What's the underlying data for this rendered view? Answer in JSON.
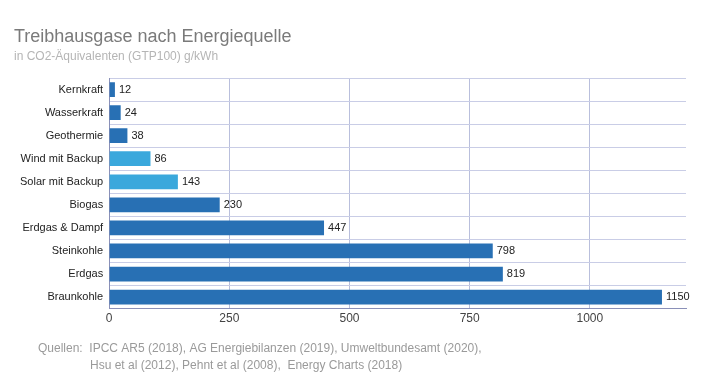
{
  "chart_data": {
    "type": "bar",
    "orientation": "horizontal",
    "title": "Treibhausgase nach Energiequelle",
    "subtitle": "in CO2-Äquivalenten (GTP100) g/kWh",
    "categories": [
      "Kernkraft",
      "Wasserkraft",
      "Geothermie",
      "Wind mit Backup",
      "Solar mit Backup",
      "Biogas",
      "Erdgas & Dampf",
      "Steinkohle",
      "Erdgas",
      "Braunkohle"
    ],
    "values": [
      12,
      24,
      38,
      86,
      143,
      230,
      447,
      798,
      819,
      1150
    ],
    "colors": [
      "#2870b4",
      "#2870b4",
      "#2870b4",
      "#3aa8dc",
      "#3aa8dc",
      "#2870b4",
      "#2870b4",
      "#2870b4",
      "#2870b4",
      "#2870b4"
    ],
    "xlim": [
      0,
      1200
    ],
    "xticks": [
      0,
      250,
      500,
      750,
      1000
    ],
    "grid": true,
    "data_labels": true,
    "source": [
      "Quellen:  IPCC AR5 (2018), AG Energiebilanzen (2019), Umweltbundesamt (2020),",
      "Hsu et al (2012), Pehnt et al (2008),  Energy Charts (2018)"
    ]
  }
}
